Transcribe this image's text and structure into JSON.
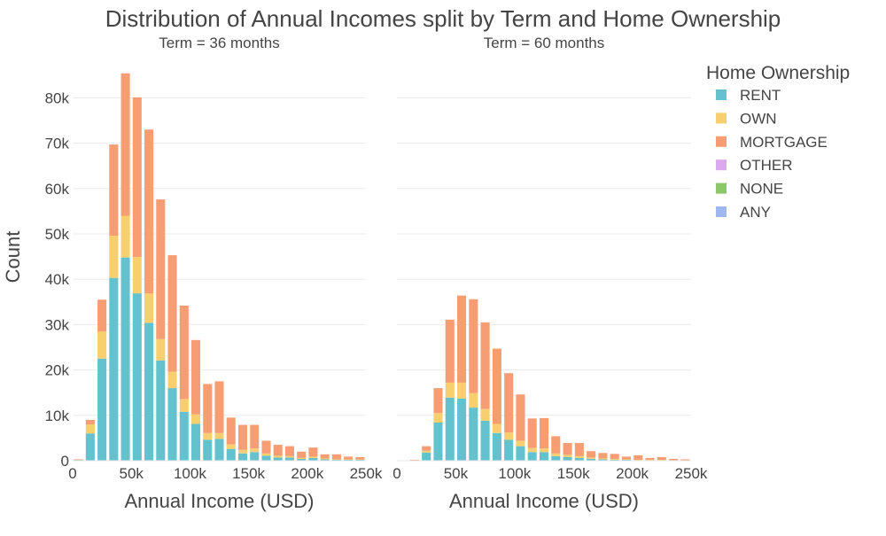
{
  "chart_data": {
    "type": "bar",
    "title": "Distribution of Annual Incomes split by Term and Home Ownership",
    "ylabel": "Count",
    "y_ticks": [
      "0",
      "10k",
      "20k",
      "30k",
      "40k",
      "50k",
      "60k",
      "70k",
      "80k"
    ],
    "ylim": [
      0,
      88000
    ],
    "xlim": [
      0,
      250000
    ],
    "x_ticks": [
      "0",
      "50k",
      "100k",
      "150k",
      "200k",
      "250k"
    ],
    "bin_width": 10000,
    "stacked": true,
    "grid": true,
    "legend": {
      "title": "Home Ownership",
      "placement": "right",
      "entries": [
        {
          "name": "RENT",
          "color": "#64C2CF"
        },
        {
          "name": "OWN",
          "color": "#F7CF6E"
        },
        {
          "name": "MORTGAGE",
          "color": "#F79D74"
        },
        {
          "name": "OTHER",
          "color": "#DCA9EF"
        },
        {
          "name": "NONE",
          "color": "#8CC769"
        },
        {
          "name": "ANY",
          "color": "#9EB8EF"
        }
      ]
    },
    "panels": [
      {
        "label": "Term = 36 months",
        "xlabel": "Annual Income (USD)",
        "bin_starts": [
          0,
          10000,
          20000,
          30000,
          40000,
          50000,
          60000,
          70000,
          80000,
          90000,
          100000,
          110000,
          120000,
          130000,
          140000,
          150000,
          160000,
          170000,
          180000,
          190000,
          200000,
          210000,
          220000,
          230000,
          240000
        ],
        "series": [
          {
            "name": "RENT",
            "values": [
              200,
              6000,
              22500,
              40300,
              44800,
              36900,
              30400,
              22100,
              16000,
              10800,
              8100,
              4600,
              4800,
              2600,
              1600,
              1900,
              1100,
              700,
              700,
              400,
              600,
              300,
              200,
              200,
              200
            ]
          },
          {
            "name": "OWN",
            "values": [
              50,
              2000,
              6000,
              9300,
              9200,
              8000,
              6500,
              4700,
              3600,
              2800,
              2100,
              1500,
              1300,
              1000,
              800,
              800,
              500,
              400,
              300,
              200,
              300,
              200,
              100,
              100,
              100
            ]
          },
          {
            "name": "MORTGAGE",
            "values": [
              50,
              1000,
              7000,
              20100,
              31400,
              35200,
              36100,
              30800,
              25700,
              20600,
              16400,
              10800,
              11400,
              5900,
              5500,
              5200,
              2800,
              2400,
              2200,
              1400,
              2000,
              900,
              1100,
              600,
              500
            ]
          },
          {
            "name": "OTHER",
            "values": [
              0,
              0,
              0,
              0,
              0,
              0,
              0,
              0,
              0,
              0,
              0,
              0,
              0,
              0,
              0,
              0,
              0,
              0,
              0,
              0,
              0,
              0,
              0,
              0,
              0
            ]
          },
          {
            "name": "NONE",
            "values": [
              0,
              0,
              0,
              0,
              0,
              0,
              0,
              0,
              0,
              0,
              0,
              0,
              0,
              0,
              0,
              0,
              0,
              0,
              0,
              0,
              0,
              0,
              0,
              0,
              0
            ]
          },
          {
            "name": "ANY",
            "values": [
              0,
              0,
              0,
              0,
              0,
              0,
              0,
              0,
              0,
              0,
              0,
              0,
              0,
              0,
              0,
              0,
              0,
              0,
              0,
              0,
              0,
              0,
              0,
              0,
              0
            ]
          }
        ]
      },
      {
        "label": "Term = 60 months",
        "xlabel": "Annual Income (USD)",
        "bin_starts": [
          0,
          10000,
          20000,
          30000,
          40000,
          50000,
          60000,
          70000,
          80000,
          90000,
          100000,
          110000,
          120000,
          130000,
          140000,
          150000,
          160000,
          170000,
          180000,
          190000,
          200000,
          210000,
          220000,
          230000,
          240000
        ],
        "series": [
          {
            "name": "RENT",
            "values": [
              0,
              100,
              1800,
              8400,
              13900,
              13700,
              11700,
              8800,
              6100,
              4600,
              3200,
              1900,
              1900,
              1000,
              800,
              600,
              400,
              300,
              200,
              200,
              100,
              100,
              100,
              50,
              50
            ]
          },
          {
            "name": "OWN",
            "values": [
              0,
              50,
              400,
              2100,
              3300,
              3500,
              3200,
              2600,
              2000,
              1600,
              1200,
              900,
              800,
              600,
              500,
              400,
              300,
              200,
              200,
              100,
              100,
              100,
              100,
              50,
              50
            ]
          },
          {
            "name": "MORTGAGE",
            "values": [
              0,
              50,
              1000,
              5500,
              13900,
              19200,
              20700,
              19100,
              16600,
              13100,
              10200,
              6500,
              6700,
              3800,
              2600,
              2900,
              1400,
              1200,
              1100,
              600,
              1000,
              400,
              600,
              300,
              200
            ]
          },
          {
            "name": "OTHER",
            "values": [
              0,
              0,
              0,
              0,
              0,
              0,
              0,
              0,
              0,
              0,
              0,
              0,
              0,
              0,
              0,
              0,
              0,
              0,
              0,
              0,
              0,
              0,
              0,
              0,
              0
            ]
          },
          {
            "name": "NONE",
            "values": [
              0,
              0,
              0,
              0,
              0,
              0,
              0,
              0,
              0,
              0,
              0,
              0,
              0,
              0,
              0,
              0,
              0,
              0,
              0,
              0,
              0,
              0,
              0,
              0,
              0
            ]
          },
          {
            "name": "ANY",
            "values": [
              0,
              0,
              0,
              0,
              0,
              0,
              0,
              0,
              0,
              0,
              0,
              0,
              0,
              0,
              0,
              0,
              0,
              0,
              0,
              0,
              0,
              0,
              0,
              0,
              0
            ]
          }
        ]
      }
    ]
  }
}
